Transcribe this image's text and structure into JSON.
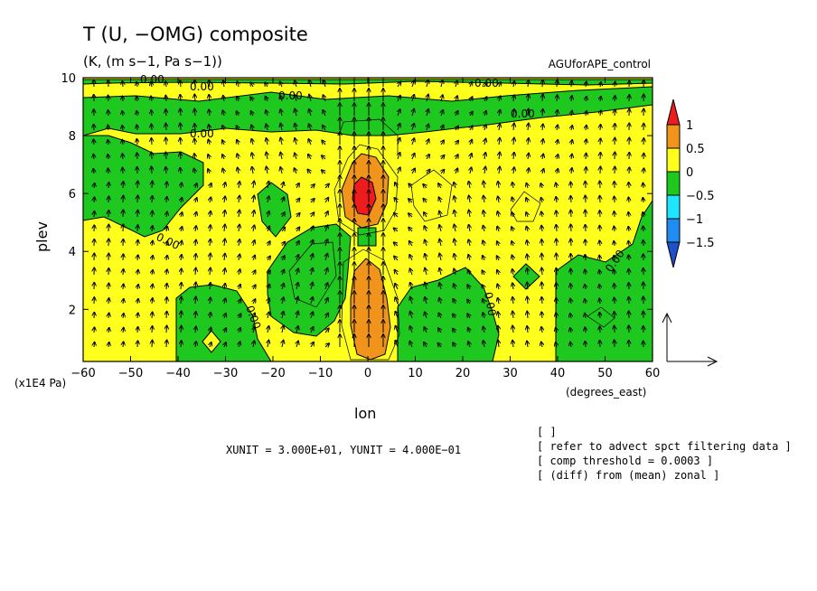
{
  "chart_data": {
    "type": "heatmap",
    "title": "T (U, −OMG) composite",
    "subtitle": "(K, (m s−1, Pa s−1))",
    "dataset": "AGUforAPE_control",
    "xlabel": "lon",
    "xunit": "(degrees_east)",
    "ylabel": "plev",
    "yunit": "(x1E4 Pa)",
    "xlim": [
      -60,
      60
    ],
    "ylim": [
      10,
      0.2
    ],
    "x_ticks": [
      "−60",
      "−50",
      "−40",
      "−30",
      "−20",
      "−10",
      "0",
      "10",
      "20",
      "30",
      "40",
      "50",
      "60"
    ],
    "y_ticks": [
      "2",
      "4",
      "6",
      "8",
      "10"
    ],
    "contour_label": "0.00",
    "colorbar": {
      "levels": [
        "1",
        "0.5",
        "0",
        "−0.5",
        "−1",
        "−1.5"
      ],
      "colors": [
        "#ee1c1c",
        "#f0941c",
        "#ffff1e",
        "#1ec81e",
        "#1ee6ff",
        "#1e8cf0",
        "#1e50c8"
      ]
    },
    "vector_units": "XUNIT = 3.000E+01, YUNIT = 4.000E−01",
    "notes": [
      "[  ]",
      "[ refer to advect spct filtering data ]",
      "[ comp threshold = 0.0003 ]",
      "[ (diff) from (mean) zonal ]"
    ]
  }
}
